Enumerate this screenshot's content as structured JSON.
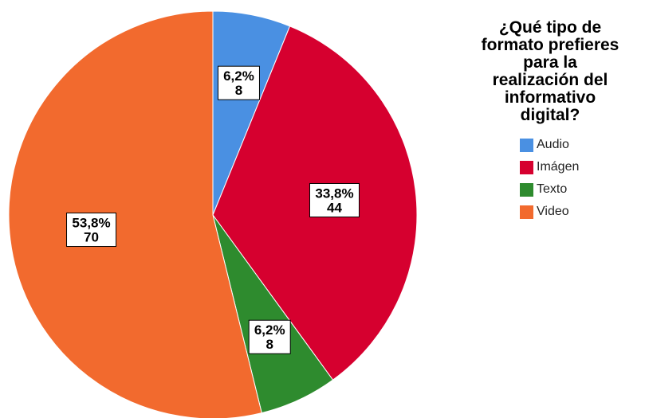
{
  "chart_data": {
    "type": "pie",
    "title": "¿Qué tipo de formato prefieres para la realización del informativo digital?",
    "title_lines": [
      "¿Qué tipo de",
      "formato prefieres",
      "para la",
      "realización del",
      "informativo",
      "digital?"
    ],
    "legend_position": "right",
    "slices": [
      {
        "label": "Audio",
        "value": 8,
        "percent": "6,2%",
        "count": "8",
        "color": "#4a90e2"
      },
      {
        "label": "Imágen",
        "value": 44,
        "percent": "33,8%",
        "count": "44",
        "color": "#d6002f"
      },
      {
        "label": "Texto",
        "value": 8,
        "percent": "6,2%",
        "count": "8",
        "color": "#2e8b2e"
      },
      {
        "label": "Video",
        "value": 70,
        "percent": "53,8%",
        "count": "70",
        "color": "#f26a2e"
      }
    ]
  }
}
